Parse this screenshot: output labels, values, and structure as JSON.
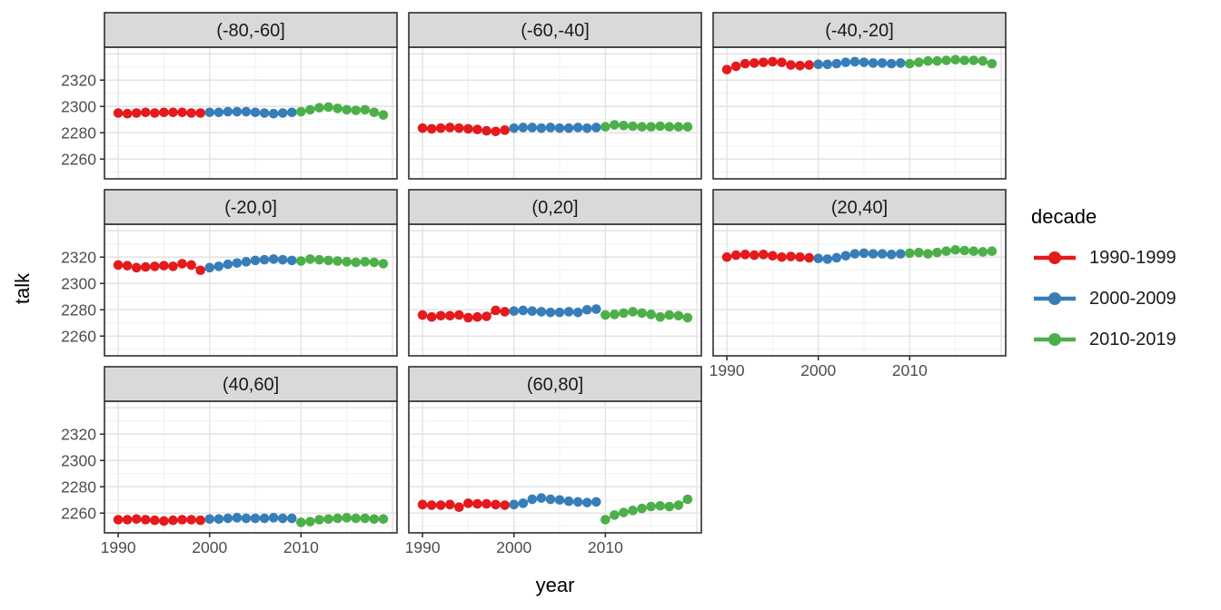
{
  "figure": {
    "y_axis_title": "talk",
    "x_axis_title": "year",
    "colors": {
      "background": "#FFFFFF",
      "panel_border": "#2F2F2F",
      "strip_fill": "#D9D9D9",
      "strip_text": "#1A1A1A",
      "grid_major": "#E3E3E3",
      "grid_minor": "#F1F1F1",
      "tick_mark": "#333333",
      "tick_label": "#4D4D4D"
    }
  },
  "legend": {
    "title": "decade",
    "entries": [
      {
        "label": "1990-1999",
        "color": "#E41A1C"
      },
      {
        "label": "2000-2009",
        "color": "#377EB8"
      },
      {
        "label": "2010-2019",
        "color": "#4DAF4A"
      }
    ]
  },
  "chart_data": {
    "type": "line",
    "subtype": "faceted line + point series (ggplot style)",
    "title": "",
    "xlabel": "year",
    "ylabel": "talk",
    "legend_title": "decade",
    "legend_position": "right",
    "grid": true,
    "x_domain": [
      1988.5,
      2020.5
    ],
    "y_domain": [
      2245,
      2345
    ],
    "x_ticks": [
      1990,
      2000,
      2010
    ],
    "y_ticks": [
      2260,
      2280,
      2300,
      2320
    ],
    "grid_major_x": [
      1990,
      2000,
      2010,
      2020
    ],
    "grid_minor_x": [
      1995,
      2005,
      2015
    ],
    "grid_major_y": [
      2260,
      2280,
      2300,
      2320,
      2340
    ],
    "grid_minor_y": [
      2250,
      2270,
      2290,
      2310,
      2330
    ],
    "series_meta": [
      {
        "name": "1990-1999",
        "start_year": 1990
      },
      {
        "name": "2000-2009",
        "start_year": 2000
      },
      {
        "name": "2010-2019",
        "start_year": 2010
      }
    ],
    "facets": [
      {
        "label": "(-80,-60]",
        "values": {
          "1990-1999": [
            2295,
            2294.5,
            2295,
            2295.5,
            2295,
            2295.5,
            2295.5,
            2295.5,
            2295,
            2295
          ],
          "2000-2009": [
            2295.5,
            2295.5,
            2296,
            2296,
            2296,
            2295.5,
            2295,
            2294.5,
            2295,
            2295.5
          ],
          "2010-2019": [
            2296,
            2297.5,
            2299,
            2299.5,
            2298.5,
            2297.5,
            2297,
            2297.5,
            2295.5,
            2293.5
          ]
        }
      },
      {
        "label": "(-60,-40]",
        "values": {
          "1990-1999": [
            2283.5,
            2283,
            2283.5,
            2284,
            2283.5,
            2283,
            2282.5,
            2281.5,
            2281,
            2282
          ],
          "2000-2009": [
            2283.5,
            2284,
            2284,
            2283.5,
            2284,
            2283.5,
            2283.5,
            2284,
            2283.5,
            2284
          ],
          "2010-2019": [
            2284.5,
            2286,
            2285.5,
            2285,
            2284.5,
            2284.5,
            2285,
            2284.5,
            2284.5,
            2284.5
          ]
        }
      },
      {
        "label": "(-40,-20]",
        "values": {
          "1990-1999": [
            2328,
            2330.5,
            2332.5,
            2333,
            2333.5,
            2334,
            2333.5,
            2331.5,
            2331,
            2331.5
          ],
          "2000-2009": [
            2332,
            2332,
            2332.5,
            2333.5,
            2334,
            2333.5,
            2333,
            2333,
            2332.5,
            2333
          ],
          "2010-2019": [
            2332.5,
            2333.5,
            2334.5,
            2334.5,
            2335,
            2335.5,
            2335,
            2335,
            2334.5,
            2332.5
          ]
        }
      },
      {
        "label": "(-20,0]",
        "values": {
          "1990-1999": [
            2314,
            2313.5,
            2312,
            2312.5,
            2313,
            2313.5,
            2313,
            2315,
            2314,
            2310
          ],
          "2000-2009": [
            2312,
            2313,
            2314.5,
            2315.5,
            2316.5,
            2317.5,
            2318,
            2318.5,
            2318,
            2317.5
          ],
          "2010-2019": [
            2317,
            2318.5,
            2318,
            2317.5,
            2317,
            2316.5,
            2316,
            2316.5,
            2316,
            2315
          ]
        }
      },
      {
        "label": "(0,20]",
        "values": {
          "1990-1999": [
            2276,
            2274.5,
            2275.5,
            2275.5,
            2276,
            2274,
            2274.5,
            2275,
            2279.5,
            2278.5
          ],
          "2000-2009": [
            2279,
            2279.5,
            2279,
            2278.5,
            2278,
            2278,
            2278.5,
            2278,
            2280,
            2280.5
          ],
          "2010-2019": [
            2276,
            2276.5,
            2277.5,
            2278.5,
            2277.5,
            2276.5,
            2274.5,
            2276,
            2275.5,
            2274
          ]
        }
      },
      {
        "label": "(20,40]",
        "values": {
          "1990-1999": [
            2320,
            2321.5,
            2322,
            2321.5,
            2322,
            2321,
            2320,
            2320.5,
            2320,
            2319.5
          ],
          "2000-2009": [
            2319,
            2318.5,
            2319.5,
            2321,
            2322.5,
            2323,
            2322.5,
            2322.5,
            2322,
            2322.5
          ],
          "2010-2019": [
            2323,
            2323.5,
            2322.5,
            2323.5,
            2324.5,
            2325.5,
            2325,
            2324.5,
            2324,
            2324.5
          ]
        }
      },
      {
        "label": "(40,60]",
        "values": {
          "1990-1999": [
            2255,
            2255,
            2255.5,
            2255,
            2254.5,
            2254,
            2254.5,
            2255,
            2255,
            2254.5
          ],
          "2000-2009": [
            2255.5,
            2255.5,
            2256,
            2256.5,
            2256,
            2256,
            2256,
            2256.5,
            2256,
            2256
          ],
          "2010-2019": [
            2253,
            2253.5,
            2255,
            2255.5,
            2256,
            2256.5,
            2256,
            2256,
            2255.5,
            2255.5
          ]
        }
      },
      {
        "label": "(60,80]",
        "values": {
          "1990-1999": [
            2266.5,
            2266,
            2266,
            2266.5,
            2264.5,
            2267.5,
            2267,
            2267,
            2266.5,
            2266
          ],
          "2000-2009": [
            2266.5,
            2267.5,
            2270.5,
            2271.5,
            2270.5,
            2270,
            2269,
            2268.5,
            2268,
            2268.5
          ],
          "2010-2019": [
            2255,
            2258.5,
            2260.5,
            2262,
            2263.5,
            2265,
            2265.5,
            2265,
            2266,
            2270.5
          ]
        }
      }
    ]
  }
}
